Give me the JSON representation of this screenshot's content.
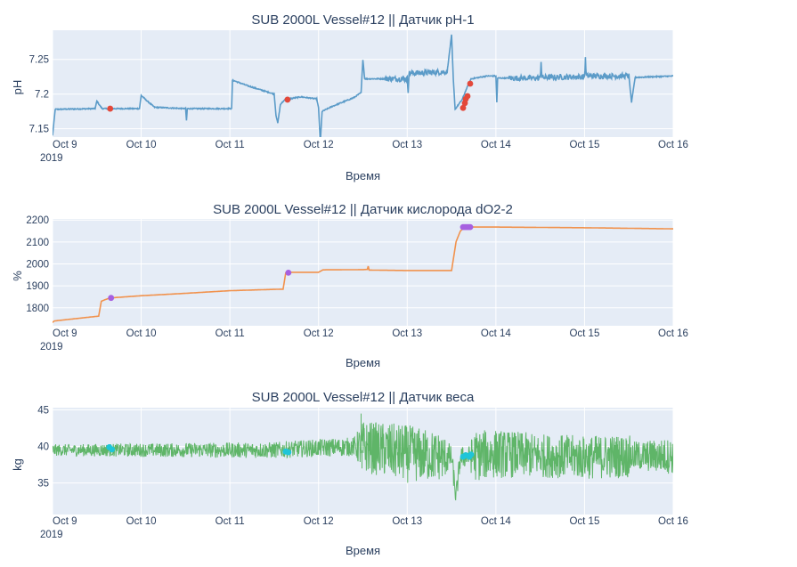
{
  "chart_data": [
    {
      "type": "line",
      "title": "SUB 2000L Vessel#12 || Датчик pH-1",
      "xlabel": "Время",
      "ylabel": "pH",
      "xlim": [
        9.0,
        16.0
      ],
      "ylim": [
        7.138,
        7.292
      ],
      "x_ticks": [
        {
          "value": 9,
          "label": "Oct 9",
          "sublabel": "2019"
        },
        {
          "value": 10,
          "label": "Oct 10"
        },
        {
          "value": 11,
          "label": "Oct 11"
        },
        {
          "value": 12,
          "label": "Oct 12"
        },
        {
          "value": 13,
          "label": "Oct 13"
        },
        {
          "value": 14,
          "label": "Oct 14"
        },
        {
          "value": 15,
          "label": "Oct 15"
        },
        {
          "value": 16,
          "label": "Oct 16"
        }
      ],
      "y_ticks": [
        {
          "value": 7.15,
          "label": "7.15"
        },
        {
          "value": 7.2,
          "label": "7.2"
        },
        {
          "value": 7.25,
          "label": "7.25"
        }
      ],
      "series": [
        {
          "color": "#5b9bc8",
          "noise": 0.0015,
          "points": [
            [
              9.0,
              7.14
            ],
            [
              9.02,
              7.165
            ],
            [
              9.03,
              7.178
            ],
            [
              9.48,
              7.179
            ],
            [
              9.5,
              7.19
            ],
            [
              9.53,
              7.184
            ],
            [
              9.56,
              7.179
            ],
            [
              9.98,
              7.179
            ],
            [
              10.0,
              7.198
            ],
            [
              10.05,
              7.192
            ],
            [
              10.15,
              7.181
            ],
            [
              10.5,
              7.179
            ],
            [
              10.51,
              7.162
            ],
            [
              10.52,
              7.179
            ],
            [
              11.02,
              7.179
            ],
            [
              11.03,
              7.22
            ],
            [
              11.2,
              7.212
            ],
            [
              11.45,
              7.202
            ],
            [
              11.5,
              7.2
            ],
            [
              11.52,
              7.17
            ],
            [
              11.54,
              7.158
            ],
            [
              11.57,
              7.185
            ],
            [
              11.62,
              7.192
            ],
            [
              11.8,
              7.196
            ],
            [
              11.98,
              7.193
            ],
            [
              12.0,
              7.18
            ],
            [
              12.02,
              7.13
            ],
            [
              12.04,
              7.175
            ],
            [
              12.15,
              7.182
            ],
            [
              12.4,
              7.195
            ],
            [
              12.48,
              7.202
            ],
            [
              12.5,
              7.25
            ],
            [
              12.52,
              7.222
            ],
            [
              13.0,
              7.222
            ],
            [
              13.01,
              7.205
            ],
            [
              13.02,
              7.23
            ],
            [
              13.45,
              7.232
            ],
            [
              13.5,
              7.285
            ],
            [
              13.52,
              7.22
            ],
            [
              13.54,
              7.178
            ],
            [
              13.58,
              7.185
            ],
            [
              13.62,
              7.192
            ],
            [
              13.66,
              7.205
            ],
            [
              13.72,
              7.222
            ],
            [
              13.9,
              7.226
            ],
            [
              14.0,
              7.226
            ],
            [
              14.01,
              7.188
            ],
            [
              14.02,
              7.223
            ],
            [
              14.5,
              7.223
            ],
            [
              14.51,
              7.247
            ],
            [
              14.52,
              7.224
            ],
            [
              15.0,
              7.225
            ],
            [
              15.01,
              7.25
            ],
            [
              15.02,
              7.226
            ],
            [
              15.5,
              7.226
            ],
            [
              15.53,
              7.188
            ],
            [
              15.57,
              7.224
            ],
            [
              16.0,
              7.226
            ]
          ],
          "noisy_ranges": [
            [
              12.75,
              13.45
            ],
            [
              14.15,
              15.5
            ]
          ],
          "noisy_amp": 0.008
        }
      ],
      "markers": {
        "color": "#e3483a",
        "points": [
          [
            9.65,
            7.179
          ],
          [
            11.65,
            7.192
          ],
          [
            13.63,
            7.18
          ],
          [
            13.65,
            7.187
          ],
          [
            13.66,
            7.193
          ],
          [
            13.68,
            7.197
          ],
          [
            13.71,
            7.215
          ]
        ]
      }
    },
    {
      "type": "line",
      "title": "SUB 2000L Vessel#12 || Датчик кислорода dO2-2",
      "xlabel": "Время",
      "ylabel": "%",
      "xlim": [
        9.0,
        16.0
      ],
      "ylim": [
        1718,
        2205
      ],
      "x_ticks": [
        {
          "value": 9,
          "label": "Oct 9",
          "sublabel": "2019"
        },
        {
          "value": 10,
          "label": "Oct 10"
        },
        {
          "value": 11,
          "label": "Oct 11"
        },
        {
          "value": 12,
          "label": "Oct 12"
        },
        {
          "value": 13,
          "label": "Oct 13"
        },
        {
          "value": 14,
          "label": "Oct 14"
        },
        {
          "value": 15,
          "label": "Oct 15"
        },
        {
          "value": 16,
          "label": "Oct 16"
        }
      ],
      "y_ticks": [
        {
          "value": 1800,
          "label": "1800"
        },
        {
          "value": 1900,
          "label": "1900"
        },
        {
          "value": 2000,
          "label": "2000"
        },
        {
          "value": 2100,
          "label": "2100"
        },
        {
          "value": 2200,
          "label": "2200"
        }
      ],
      "series": [
        {
          "color": "#f1924d",
          "noise": 0,
          "points": [
            [
              9.0,
              1733
            ],
            [
              9.02,
              1740
            ],
            [
              9.52,
              1762
            ],
            [
              9.55,
              1830
            ],
            [
              9.6,
              1838
            ],
            [
              9.65,
              1845
            ],
            [
              10.0,
              1855
            ],
            [
              10.5,
              1866
            ],
            [
              11.0,
              1878
            ],
            [
              11.5,
              1884
            ],
            [
              11.6,
              1885
            ],
            [
              11.63,
              1960
            ],
            [
              11.68,
              1962
            ],
            [
              12.0,
              1962
            ],
            [
              12.05,
              1973
            ],
            [
              12.5,
              1974
            ],
            [
              12.55,
              1975
            ],
            [
              12.56,
              1990
            ],
            [
              12.57,
              1972
            ],
            [
              13.0,
              1970
            ],
            [
              13.5,
              1970
            ],
            [
              13.55,
              2100
            ],
            [
              13.6,
              2150
            ],
            [
              13.65,
              2168
            ],
            [
              14.0,
              2168
            ],
            [
              15.0,
              2165
            ],
            [
              16.0,
              2160
            ]
          ],
          "noisy_ranges": [],
          "noisy_amp": 0
        }
      ],
      "markers": {
        "color": "#a660e0",
        "points": [
          [
            9.66,
            1845
          ],
          [
            11.66,
            1960
          ],
          [
            13.63,
            2168
          ],
          [
            13.65,
            2168
          ],
          [
            13.67,
            2168
          ],
          [
            13.69,
            2168
          ],
          [
            13.71,
            2168
          ]
        ]
      }
    },
    {
      "type": "line",
      "title": "SUB 2000L Vessel#12 || Датчик веса",
      "xlabel": "Время",
      "ylabel": "kg",
      "xlim": [
        9.0,
        16.0
      ],
      "ylim": [
        30.7,
        45.3
      ],
      "x_ticks": [
        {
          "value": 9,
          "label": "Oct 9",
          "sublabel": "2019"
        },
        {
          "value": 10,
          "label": "Oct 10"
        },
        {
          "value": 11,
          "label": "Oct 11"
        },
        {
          "value": 12,
          "label": "Oct 12"
        },
        {
          "value": 13,
          "label": "Oct 13"
        },
        {
          "value": 14,
          "label": "Oct 14"
        },
        {
          "value": 15,
          "label": "Oct 15"
        },
        {
          "value": 16,
          "label": "Oct 16"
        }
      ],
      "y_ticks": [
        {
          "value": 35,
          "label": "35"
        },
        {
          "value": 40,
          "label": "40"
        },
        {
          "value": 45,
          "label": "45"
        }
      ],
      "series": [
        {
          "color": "#5fb568",
          "noise": 0,
          "points": [
            [
              9.0,
              39.5
            ],
            [
              11.5,
              39.5
            ],
            [
              12.0,
              39.8
            ],
            [
              12.5,
              40.0
            ],
            [
              13.0,
              39.0
            ],
            [
              13.5,
              38.5
            ],
            [
              13.55,
              33.0
            ],
            [
              13.6,
              38.5
            ],
            [
              14.0,
              39.0
            ],
            [
              15.0,
              38.5
            ],
            [
              15.5,
              38.7
            ],
            [
              16.0,
              38.7
            ]
          ],
          "noisy_ranges": [],
          "noisy_amp": 0,
          "band": [
            [
              9.0,
              1.6
            ],
            [
              11.5,
              2.2
            ],
            [
              12.4,
              2.6
            ],
            [
              12.5,
              7.0
            ],
            [
              13.0,
              8.0
            ],
            [
              13.4,
              6.5
            ],
            [
              13.5,
              3.0
            ],
            [
              13.7,
              3.0
            ],
            [
              13.75,
              7.0
            ],
            [
              14.5,
              6.0
            ],
            [
              15.5,
              6.0
            ],
            [
              15.55,
              4.0
            ],
            [
              16.0,
              5.0
            ]
          ]
        }
      ],
      "markers": {
        "color": "#1fc5d8",
        "points": [
          [
            9.64,
            39.9
          ],
          [
            9.67,
            39.6
          ],
          [
            11.63,
            39.3
          ],
          [
            11.66,
            39.2
          ],
          [
            13.63,
            38.6
          ],
          [
            13.66,
            38.8
          ],
          [
            13.7,
            38.6
          ],
          [
            13.72,
            38.9
          ]
        ]
      }
    }
  ]
}
